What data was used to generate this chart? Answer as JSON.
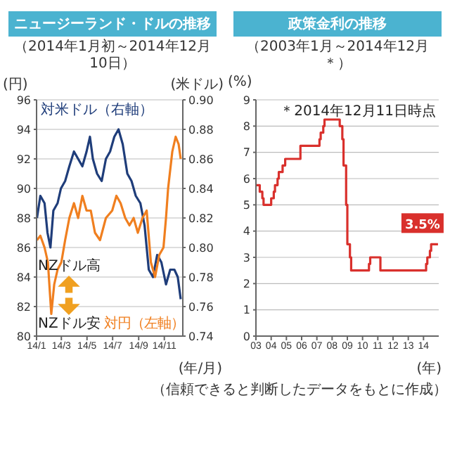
{
  "chart_data": [
    {
      "type": "line",
      "title": "ニュージーランド・ドルの推移",
      "subtitle": "（2014年1月初～2014年12月10日）",
      "xlabel": "(年/月)",
      "ylabel": "(円)",
      "y2label": "(米ドル)",
      "annotations": [
        "NZドル高",
        "NZドル安"
      ],
      "xlim": [
        "2014-01-01",
        "2014-12-15"
      ],
      "xticks": [
        {
          "value": "2014-01-01",
          "label": "14/1"
        },
        {
          "value": "2014-03-01",
          "label": "14/3"
        },
        {
          "value": "2014-05-01",
          "label": "14/5"
        },
        {
          "value": "2014-07-01",
          "label": "14/7"
        },
        {
          "value": "2014-09-01",
          "label": "14/9"
        },
        {
          "value": "2014-11-01",
          "label": "14/11"
        }
      ],
      "ylim": [
        80,
        96
      ],
      "yticks": [
        80,
        82,
        84,
        86,
        88,
        90,
        92,
        94,
        96
      ],
      "y2lim": [
        0.74,
        0.9
      ],
      "y2ticks": [
        0.74,
        0.76,
        0.78,
        {
          "value": 0.8,
          "label": "0.80"
        },
        0.82,
        0.84,
        0.86,
        0.88,
        {
          "value": 0.9,
          "label": "0.90"
        }
      ],
      "grid": "y",
      "legend": false,
      "marker": "none",
      "series": [
        {
          "name": "対米ドル（右軸）",
          "color": "#1f3d7a",
          "axis": "y2",
          "x": [
            "2014-01-02",
            "2014-01-10",
            "2014-01-20",
            "2014-01-27",
            "2014-02-03",
            "2014-02-10",
            "2014-02-20",
            "2014-02-28",
            "2014-03-10",
            "2014-03-20",
            "2014-03-31",
            "2014-04-10",
            "2014-04-20",
            "2014-04-30",
            "2014-05-08",
            "2014-05-15",
            "2014-05-25",
            "2014-06-05",
            "2014-06-15",
            "2014-06-25",
            "2014-07-05",
            "2014-07-15",
            "2014-07-25",
            "2014-08-05",
            "2014-08-15",
            "2014-08-25",
            "2014-09-05",
            "2014-09-15",
            "2014-09-25",
            "2014-10-05",
            "2014-10-15",
            "2014-10-25",
            "2014-11-05",
            "2014-11-15",
            "2014-11-25",
            "2014-12-03",
            "2014-12-10"
          ],
          "values": [
            0.82,
            0.835,
            0.83,
            0.81,
            0.8,
            0.825,
            0.83,
            0.84,
            0.845,
            0.855,
            0.865,
            0.86,
            0.855,
            0.865,
            0.875,
            0.86,
            0.85,
            0.845,
            0.86,
            0.865,
            0.875,
            0.88,
            0.87,
            0.85,
            0.845,
            0.835,
            0.83,
            0.815,
            0.785,
            0.78,
            0.795,
            0.79,
            0.775,
            0.785,
            0.785,
            0.78,
            0.765
          ]
        },
        {
          "name": "対円（左軸）",
          "color": "#f07f1f",
          "x": [
            "2014-01-02",
            "2014-01-10",
            "2014-01-20",
            "2014-01-28",
            "2014-02-05",
            "2014-02-12",
            "2014-02-20",
            "2014-03-01",
            "2014-03-10",
            "2014-03-20",
            "2014-03-31",
            "2014-04-10",
            "2014-04-20",
            "2014-04-30",
            "2014-05-10",
            "2014-05-20",
            "2014-06-01",
            "2014-06-15",
            "2014-06-30",
            "2014-07-10",
            "2014-07-20",
            "2014-07-31",
            "2014-08-10",
            "2014-08-20",
            "2014-08-30",
            "2014-09-10",
            "2014-09-20",
            "2014-09-30",
            "2014-10-10",
            "2014-10-20",
            "2014-10-30",
            "2014-11-05",
            "2014-11-10",
            "2014-11-20",
            "2014-11-28",
            "2014-12-05",
            "2014-12-10"
          ],
          "values": [
            86.5,
            86.8,
            86,
            85,
            81.5,
            83.5,
            84.5,
            85,
            86.5,
            88,
            89,
            88,
            89.5,
            88.5,
            88.5,
            87,
            86.5,
            88,
            88.5,
            89.5,
            89,
            88,
            87.5,
            88,
            87,
            88,
            88.5,
            85,
            84,
            85.5,
            86,
            88,
            90,
            92.5,
            93.5,
            93,
            92
          ]
        }
      ]
    },
    {
      "type": "step",
      "title": "政策金利の推移",
      "subtitle": "（2003年1月～2014年12月＊）",
      "xlabel": "(年)",
      "ylabel": "(%)",
      "annotations": [
        "＊2014年12月11日時点",
        "（信頼できると判断したデータをもとに作成）"
      ],
      "xlim": [
        2003,
        2015
      ],
      "xticks": [
        {
          "value": 2003,
          "label": "03"
        },
        {
          "value": 2004,
          "label": "04"
        },
        {
          "value": 2005,
          "label": "05"
        },
        {
          "value": 2006,
          "label": "06"
        },
        {
          "value": 2007,
          "label": "07"
        },
        {
          "value": 2008,
          "label": "08"
        },
        {
          "value": 2009,
          "label": "09"
        },
        {
          "value": 2010,
          "label": "10"
        },
        {
          "value": 2011,
          "label": "11"
        },
        {
          "value": 2012,
          "label": "12"
        },
        {
          "value": 2013,
          "label": "13"
        },
        {
          "value": 2014,
          "label": "14"
        }
      ],
      "ylim": [
        0,
        9
      ],
      "yticks": [
        0,
        1,
        2,
        3,
        4,
        5,
        6,
        7,
        8,
        9
      ],
      "grid": "y",
      "legend": false,
      "marker": "none",
      "series": [
        {
          "color": "#d9302c",
          "x": [
            2003.0,
            2003.25,
            2003.42,
            2003.5,
            2004.0,
            2004.17,
            2004.25,
            2004.42,
            2004.5,
            2004.75,
            2004.92,
            2005.92,
            2007.17,
            2007.25,
            2007.42,
            2007.5,
            2008.5,
            2008.67,
            2008.75,
            2008.92,
            2009.0,
            2009.17,
            2009.25,
            2010.42,
            2010.5,
            2011.17,
            2014.17,
            2014.25,
            2014.42,
            2014.5,
            2014.95
          ],
          "values": [
            5.75,
            5.5,
            5.25,
            5.0,
            5.25,
            5.5,
            5.75,
            6.0,
            6.25,
            6.5,
            6.75,
            7.25,
            7.5,
            7.75,
            8.0,
            8.25,
            8.0,
            7.5,
            6.5,
            5.0,
            3.5,
            3.0,
            2.5,
            2.75,
            3.0,
            2.5,
            2.75,
            3.0,
            3.25,
            3.5,
            3.5
          ],
          "value_labels": [
            null,
            null,
            null,
            null,
            null,
            null,
            null,
            null,
            null,
            null,
            null,
            null,
            null,
            null,
            null,
            null,
            null,
            null,
            null,
            null,
            null,
            null,
            null,
            null,
            null,
            null,
            null,
            null,
            null,
            null,
            "3.5%"
          ]
        }
      ]
    }
  ]
}
